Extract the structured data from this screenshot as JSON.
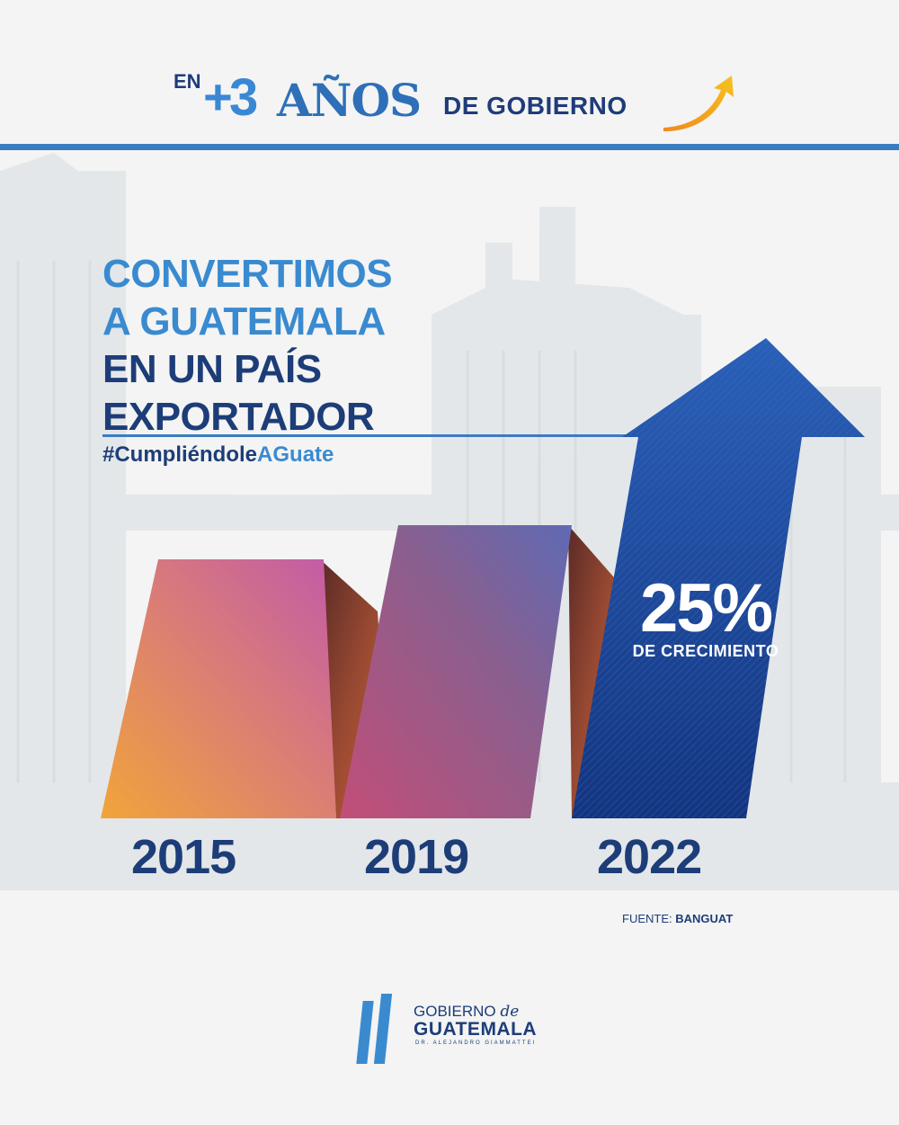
{
  "header": {
    "en": "EN",
    "plus": "+",
    "number": "3",
    "anos": "AÑOS",
    "de_gobierno": "DE GOBIERNO",
    "accent_color": "#3a87d4",
    "arrow_color": "#f4a81d"
  },
  "headline": {
    "line1": "CONVERTIMOS",
    "line2": "A GUATEMALA",
    "line3": "EN UN PAÍS",
    "line4": "EXPORTADOR",
    "hashtag_prefix": "#Cumpliéndole",
    "hashtag_suffix": "AGuate"
  },
  "growth": {
    "value": "25%",
    "label": "DE CRECIMIENTO"
  },
  "years": [
    "2015",
    "2019",
    "2022"
  ],
  "source": {
    "prefix": "FUENTE:",
    "name": "BANGUAT"
  },
  "logo": {
    "line1": "GOBIERNO",
    "line1_italic": "de",
    "line2": "GUATEMALA",
    "line3": "DR. ALEJANDRO GIAMMATTEI"
  },
  "colors": {
    "dark_blue": "#1d3d78",
    "light_blue": "#3a8ad0",
    "arrow_blue": "#1c4fa0"
  }
}
